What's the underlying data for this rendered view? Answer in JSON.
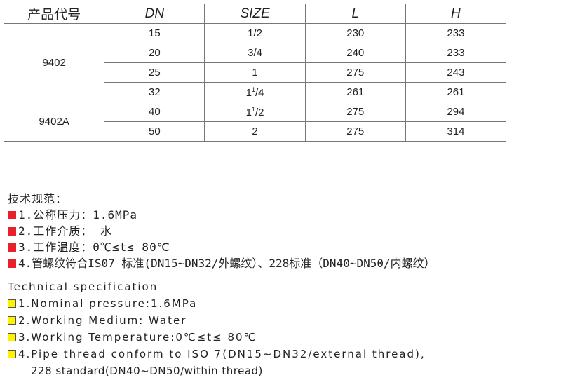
{
  "table": {
    "headers": [
      "产品代号",
      "DN",
      "SIZE",
      "L",
      "H"
    ],
    "groups": [
      {
        "model": "9402",
        "rows": [
          {
            "dn": "15",
            "size": "1/2",
            "l": "230",
            "h": "233"
          },
          {
            "dn": "20",
            "size": "3/4",
            "l": "240",
            "h": "233"
          },
          {
            "dn": "25",
            "size": "1",
            "l": "275",
            "h": "243"
          },
          {
            "dn": "32",
            "size_whole": "1",
            "size_frac_num": "1",
            "size_frac_den": "/4",
            "l": "261",
            "h": "261"
          }
        ]
      },
      {
        "model": "9402A",
        "rows": [
          {
            "dn": "40",
            "size_whole": "1",
            "size_frac_num": "1",
            "size_frac_den": "/2",
            "l": "275",
            "h": "294"
          },
          {
            "dn": "50",
            "size": "2",
            "l": "275",
            "h": "314"
          }
        ]
      }
    ]
  },
  "spec_cn": {
    "title": "技术规范：",
    "items": [
      "1.公称压力：1.6MPa",
      "2.工作介质： 水",
      "3.工作温度：0℃≤t≤ 80℃",
      "4.管螺纹符合IS07 标准(DN15~DN32/外螺纹）、228标准（DN40~DN50/内螺纹）"
    ],
    "bullet_color": "#e8202a"
  },
  "spec_en": {
    "title": "Technical specification",
    "items": [
      "1.Nominal pressure:1.6MPa",
      "2.Working Medium: Water",
      "3.Working Temperature:0℃≤t≤ 80℃",
      "4.Pipe thread conform to ISO 7(DN15~DN32/external thread),"
    ],
    "item4_cont": "228 standard(DN40~DN50/within thread)",
    "bullet_color": "#fff200"
  }
}
